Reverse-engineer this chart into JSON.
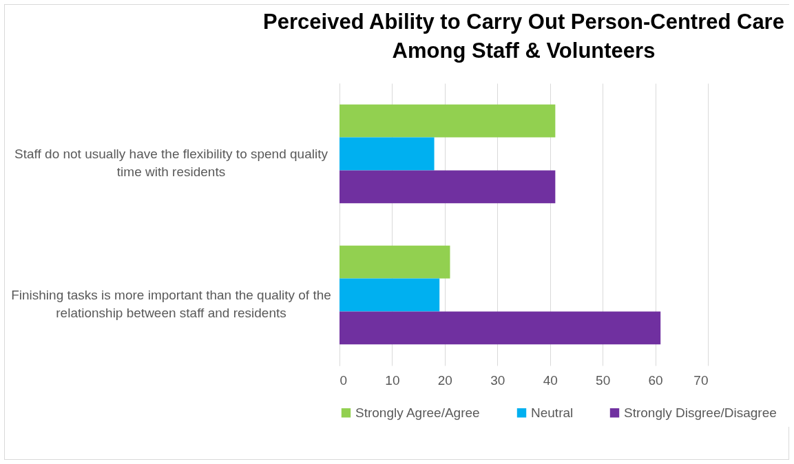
{
  "chart_data": {
    "type": "bar",
    "orientation": "horizontal",
    "title": "Perceived Ability to Carry Out Person-Centred Care Among Staff & Volunteers",
    "categories": [
      "Staff do not usually have the flexibility to spend quality time with residents",
      "Finishing tasks is more important than the quality of the relationship between staff and residents"
    ],
    "series": [
      {
        "name": "Strongly Agree/Agree",
        "color": "#92d050",
        "values": [
          41,
          21
        ]
      },
      {
        "name": "Neutral",
        "color": "#00b0f0",
        "values": [
          18,
          19
        ]
      },
      {
        "name": "Strongly Disgree/Disagree",
        "color": "#7030a0",
        "values": [
          41,
          61
        ]
      }
    ],
    "xlim": [
      0,
      70
    ],
    "xticks": [
      0,
      10,
      20,
      30,
      40,
      50,
      60,
      70
    ],
    "grid": "x",
    "legend": "bottom"
  }
}
